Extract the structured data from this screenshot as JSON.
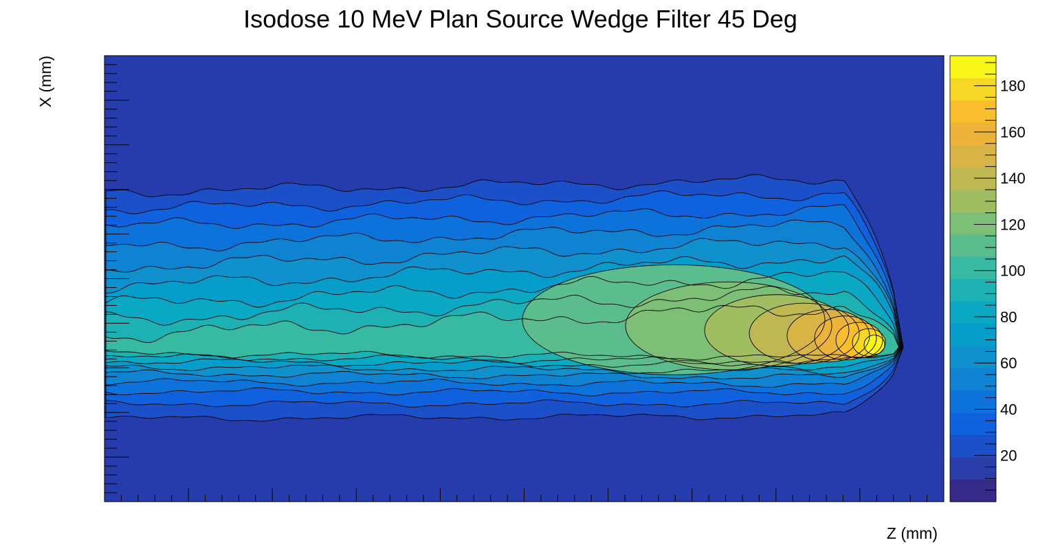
{
  "chart_data": {
    "type": "heatmap",
    "title": "Isodose 10 MeV Plan Source Wedge Filter 45 Deg",
    "xlabel": "Z (mm)",
    "ylabel": "X (mm)",
    "colorbar": {
      "range": [
        0,
        193
      ],
      "ticks": [
        20,
        40,
        60,
        80,
        100,
        120,
        140,
        160,
        180
      ],
      "tick_labels": [
        "20",
        "40",
        "60",
        "80",
        "100",
        "120",
        "140",
        "160",
        "180"
      ],
      "levels": 20,
      "colormap": "kBird"
    },
    "contours": true,
    "x_tick_labels_visible": false,
    "y_tick_labels_visible": false,
    "features": {
      "beam_axis_fraction_from_top": 0.66,
      "hotspot_value": 190,
      "beam_edge_value": 12
    }
  },
  "colors": {
    "background": "#273cac",
    "palette": [
      "#352a87",
      "#2b3da8",
      "#1b50c9",
      "#1061dd",
      "#0d73db",
      "#0f83d2",
      "#1190ce",
      "#079dcb",
      "#0ba8c3",
      "#1eb1b3",
      "#37b9a2",
      "#5bbd8d",
      "#7ebf78",
      "#a0bd62",
      "#bfb752",
      "#d8b345",
      "#eeb33a",
      "#f9be2d",
      "#f7d725",
      "#f9f619"
    ]
  }
}
